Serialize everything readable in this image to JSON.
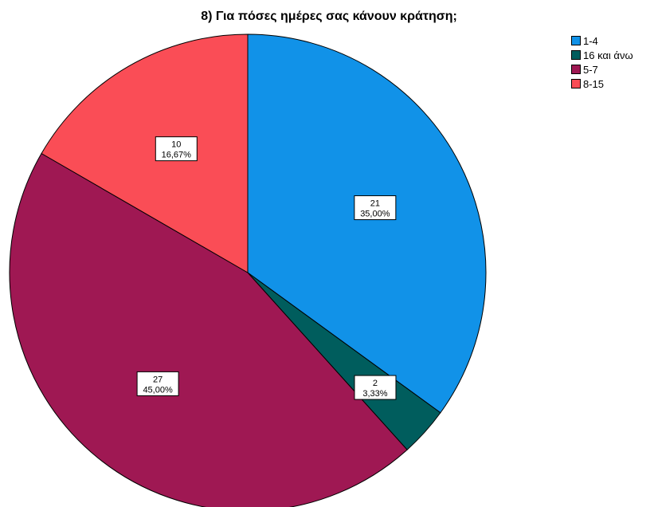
{
  "chart_data": {
    "type": "pie",
    "title": "8) Για πόσες ημέρες σας κάνουν κράτηση;",
    "slices": [
      {
        "label": "1-4",
        "value": 21,
        "percent": "35,00%",
        "color": "#1192e8"
      },
      {
        "label": "16 και άνω",
        "value": 2,
        "percent": "3,33%",
        "color": "#005d5d"
      },
      {
        "label": "5-7",
        "value": 27,
        "percent": "45,00%",
        "color": "#9f1853"
      },
      {
        "label": "8-15",
        "value": 10,
        "percent": "16,67%",
        "color": "#fa4d56"
      }
    ],
    "legend_position": "top-right",
    "start_angle_deg": 0,
    "direction": "clockwise"
  }
}
